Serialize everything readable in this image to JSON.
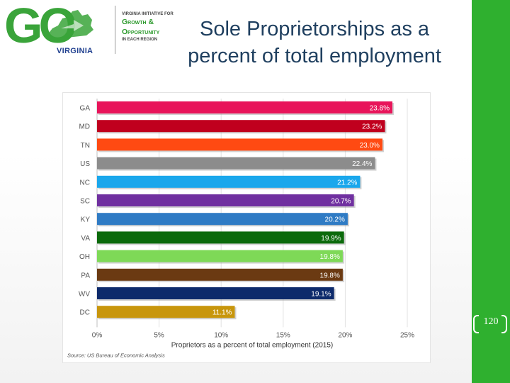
{
  "logo": {
    "go": "GO",
    "virginia": "VIRGINIA",
    "line1": "VIRGINIA INITIATIVE FOR",
    "line2": "Growth &",
    "line3": "Opportunity",
    "line4": "IN EACH REGION",
    "green": "#3aa43a",
    "blue": "#1f3f8f"
  },
  "slide": {
    "title_line1": "Sole Proprietorships as a",
    "title_line2": "percent of total employment",
    "page_number": "120",
    "accent": "#2fb02f"
  },
  "chart_data": {
    "type": "bar",
    "orientation": "horizontal",
    "categories": [
      "GA",
      "MD",
      "TN",
      "US",
      "NC",
      "SC",
      "KY",
      "VA",
      "OH",
      "PA",
      "WV",
      "DC"
    ],
    "values": [
      23.8,
      23.2,
      23.0,
      22.4,
      21.2,
      20.7,
      20.2,
      19.9,
      19.8,
      19.8,
      19.1,
      11.1
    ],
    "labels": [
      "23.8%",
      "23.2%",
      "23.0%",
      "22.4%",
      "21.2%",
      "20.7%",
      "20.2%",
      "19.9%",
      "19.8%",
      "19.8%",
      "19.1%",
      "11.1%"
    ],
    "colors": [
      "#e8145a",
      "#c0001e",
      "#ff4a12",
      "#8c8c8c",
      "#1aa7ec",
      "#7030a0",
      "#2f7bc4",
      "#0b6a0b",
      "#7ed957",
      "#6b3a12",
      "#0d2a6b",
      "#c8960c"
    ],
    "xlim": [
      0,
      25
    ],
    "xticks": [
      "0%",
      "5%",
      "10%",
      "15%",
      "20%",
      "25%"
    ],
    "xtick_values": [
      0,
      5,
      10,
      15,
      20,
      25
    ],
    "xlabel": "Proprietors as a percent of total employment (2015)",
    "source": "Source: US Bureau of Economic Analysis",
    "grid": true
  }
}
